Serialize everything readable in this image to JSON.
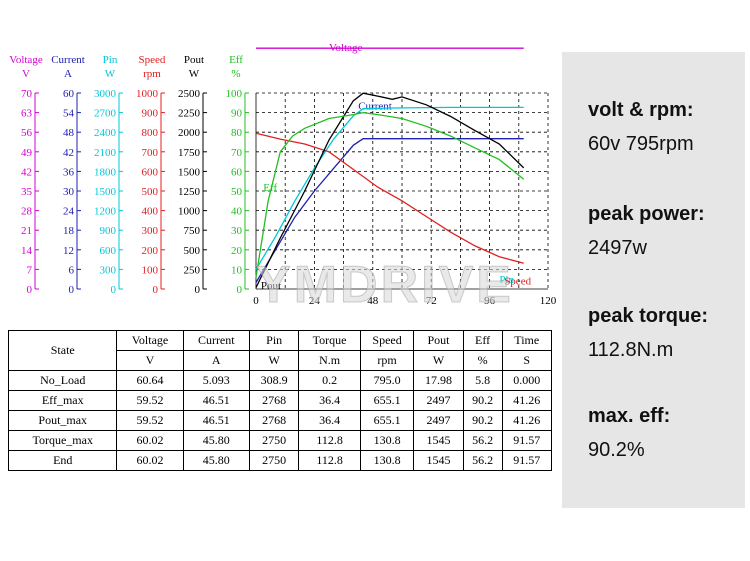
{
  "axes_header": [
    {
      "title": "Voltage",
      "unit": "V",
      "color": "#d400d4"
    },
    {
      "title": "Current",
      "unit": "A",
      "color": "#2020b0"
    },
    {
      "title": "Pin",
      "unit": "W",
      "color": "#00c8d8"
    },
    {
      "title": "Speed",
      "unit": "rpm",
      "color": "#e02020"
    },
    {
      "title": "Pout",
      "unit": "W",
      "color": "#000000"
    },
    {
      "title": "Eff",
      "unit": "%",
      "color": "#20c020"
    }
  ],
  "axis_ticks": {
    "voltage": [
      "70",
      "63",
      "56",
      "49",
      "42",
      "35",
      "28",
      "21",
      "14",
      "7",
      "0"
    ],
    "current": [
      "60",
      "54",
      "48",
      "42",
      "36",
      "30",
      "24",
      "18",
      "12",
      "6",
      "0"
    ],
    "pin": [
      "3000",
      "2700",
      "2400",
      "2100",
      "1800",
      "1500",
      "1200",
      "900",
      "600",
      "300",
      "0"
    ],
    "speed": [
      "1000",
      "900",
      "800",
      "700",
      "600",
      "500",
      "400",
      "300",
      "200",
      "100",
      "0"
    ],
    "pout": [
      "2500",
      "2250",
      "2000",
      "1750",
      "1500",
      "1250",
      "1000",
      "750",
      "500",
      "250",
      "0"
    ],
    "eff": [
      "100",
      "90",
      "80",
      "70",
      "60",
      "50",
      "40",
      "30",
      "20",
      "10",
      "0"
    ]
  },
  "chart_data": {
    "type": "line",
    "xlim": [
      0,
      120
    ],
    "x_ticks": [
      "0",
      "24",
      "48",
      "72",
      "96",
      "120"
    ],
    "grid": true,
    "series": [
      {
        "name": "Voltage",
        "color": "#d400d4",
        "label_at": [
          30,
          85
        ],
        "x": [
          0,
          10,
          20,
          30,
          40,
          48,
          60,
          80,
          100,
          110
        ],
        "y": [
          86,
          86,
          86,
          86,
          86,
          86,
          86,
          86,
          86,
          86
        ]
      },
      {
        "name": "Current",
        "color": "#2020b0",
        "label_at": [
          42,
          55
        ],
        "x": [
          0,
          8,
          16,
          24,
          32,
          40,
          44,
          60,
          80,
          100,
          110
        ],
        "y": [
          2,
          12,
          22,
          30,
          37,
          44,
          46,
          46,
          46,
          46,
          46
        ]
      },
      {
        "name": "Pin",
        "color": "#00c8d8",
        "label_at": [
          100,
          94
        ],
        "x": [
          0,
          8,
          16,
          24,
          32,
          40,
          44,
          56,
          80,
          100,
          110
        ],
        "y": [
          300,
          800,
          1350,
          1850,
          2300,
          2650,
          2760,
          2770,
          2780,
          2780,
          2780
        ]
      },
      {
        "name": "Speed",
        "color": "#e02020",
        "label_at": [
          102,
          23
        ],
        "x": [
          0,
          10,
          20,
          30,
          40,
          50,
          60,
          70,
          80,
          90,
          100,
          110
        ],
        "y": [
          795,
          765,
          740,
          700,
          610,
          520,
          450,
          370,
          290,
          220,
          165,
          131
        ]
      },
      {
        "name": "Pout",
        "color": "#000000",
        "label_at": [
          2,
          3
        ],
        "x": [
          0,
          10,
          20,
          30,
          40,
          44,
          50,
          56,
          60,
          70,
          80,
          90,
          100,
          110
        ],
        "y": [
          18,
          650,
          1250,
          1900,
          2400,
          2497,
          2460,
          2420,
          2450,
          2350,
          2200,
          2020,
          1850,
          1545
        ]
      },
      {
        "name": "Eff",
        "color": "#20c020",
        "label_at": [
          3,
          50
        ],
        "x": [
          0,
          5,
          10,
          15,
          20,
          30,
          40,
          44,
          50,
          60,
          70,
          80,
          90,
          100,
          110
        ],
        "y": [
          6,
          45,
          70,
          78,
          82,
          87,
          89,
          90,
          89,
          87,
          83,
          78,
          72,
          66,
          56
        ]
      }
    ]
  },
  "watermark": "YMDRIVE",
  "table": {
    "headers": [
      {
        "name": "Voltage",
        "unit": "V"
      },
      {
        "name": "Current",
        "unit": "A"
      },
      {
        "name": "Pin",
        "unit": "W"
      },
      {
        "name": "Torque",
        "unit": "N.m"
      },
      {
        "name": "Speed",
        "unit": "rpm"
      },
      {
        "name": "Pout",
        "unit": "W"
      },
      {
        "name": "Eff",
        "unit": "%"
      },
      {
        "name": "Time",
        "unit": "S"
      }
    ],
    "state_header": "State",
    "rows": [
      {
        "state": "No_Load",
        "cells": [
          "60.64",
          "5.093",
          "308.9",
          "0.2",
          "795.0",
          "17.98",
          "5.8",
          "0.000"
        ]
      },
      {
        "state": "Eff_max",
        "cells": [
          "59.52",
          "46.51",
          "2768",
          "36.4",
          "655.1",
          "2497",
          "90.2",
          "41.26"
        ]
      },
      {
        "state": "Pout_max",
        "cells": [
          "59.52",
          "46.51",
          "2768",
          "36.4",
          "655.1",
          "2497",
          "90.2",
          "41.26"
        ]
      },
      {
        "state": "Torque_max",
        "cells": [
          "60.02",
          "45.80",
          "2750",
          "112.8",
          "130.8",
          "1545",
          "56.2",
          "91.57"
        ]
      },
      {
        "state": "End",
        "cells": [
          "60.02",
          "45.80",
          "2750",
          "112.8",
          "130.8",
          "1545",
          "56.2",
          "91.57"
        ]
      }
    ]
  },
  "specs": [
    {
      "label": "volt & rpm:",
      "value": "60v 795rpm"
    },
    {
      "label": "peak power:",
      "value": "2497w"
    },
    {
      "label": "peak torque:",
      "value": "112.8N.m"
    },
    {
      "label": "max. eff:",
      "value": "90.2%"
    }
  ]
}
